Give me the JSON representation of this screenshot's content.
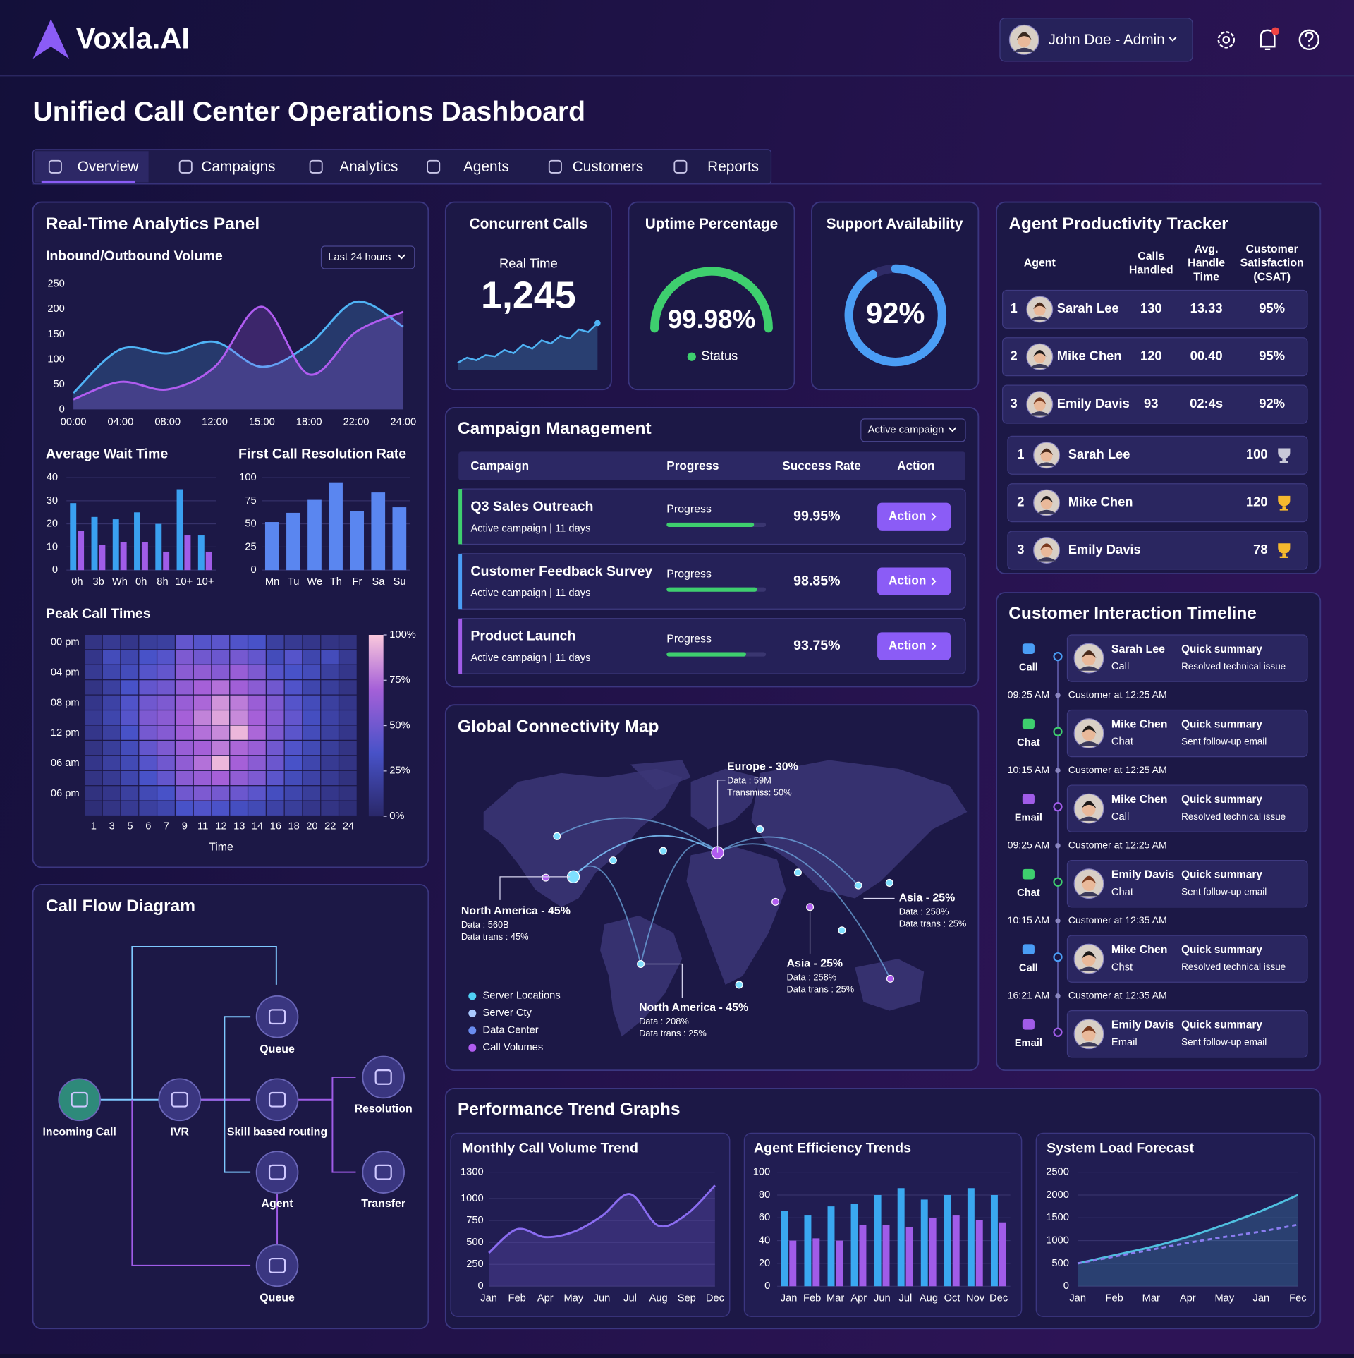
{
  "header": {
    "logo": "Voxla.AI",
    "user": "John Doe - Admin"
  },
  "title": "Unified Call Center Operations Dashboard",
  "tabs": [
    "Overview",
    "Campaigns",
    "Analytics",
    "Agents",
    "Customers",
    "Reports"
  ],
  "realtime": {
    "title": "Real-Time Analytics Panel",
    "volume": {
      "type": "area",
      "title": "Inbound/Outbound Volume",
      "filter": "Last 24 hours",
      "categories": [
        "00:00",
        "04:00",
        "08:00",
        "12:00",
        "15:00",
        "18:00",
        "22:00",
        "24:00"
      ],
      "ylim": [
        0,
        250
      ],
      "yticks": [
        0,
        50,
        100,
        150,
        200,
        250
      ],
      "grid": false,
      "series": [
        {
          "color": "#4fb3f5",
          "values": [
            33,
            120,
            112,
            135,
            85,
            130,
            215,
            165
          ]
        },
        {
          "color": "#b05cf0",
          "values": [
            20,
            55,
            40,
            85,
            205,
            70,
            155,
            195
          ]
        }
      ]
    },
    "wait": {
      "type": "bar",
      "title": "Average Wait Time",
      "categories": [
        "0h",
        "3b",
        "Wh",
        "0h",
        "8h",
        "10+",
        "10+"
      ],
      "ylim": [
        0,
        40
      ],
      "yticks": [
        0,
        10,
        20,
        30,
        40
      ],
      "grid": true,
      "series": [
        {
          "color": "#3aa0f0",
          "values": [
            29,
            23,
            22,
            25,
            20,
            35,
            15
          ]
        },
        {
          "color": "#a05ce8",
          "values": [
            17,
            11,
            12,
            12,
            8,
            15,
            8
          ]
        }
      ]
    },
    "fcr": {
      "type": "bar",
      "title": "First Call Resolution Rate",
      "categories": [
        "Mn",
        "Tu",
        "We",
        "Th",
        "Fr",
        "Sa",
        "Su"
      ],
      "ylim": [
        0,
        100
      ],
      "yticks": [
        0,
        25,
        50,
        75,
        100
      ],
      "grid": true,
      "color": "#5a86f0",
      "values": [
        52,
        62,
        76,
        95,
        64,
        84,
        68
      ]
    },
    "peak": {
      "type": "heatmap",
      "title": "Peak Call Times",
      "x_categories": [
        "1",
        "3",
        "5",
        "6",
        "7",
        "9",
        "11",
        "12",
        "13",
        "14",
        "16",
        "18",
        "20",
        "22",
        "24"
      ],
      "y_categories": [
        "00 pm",
        null,
        "04 pm",
        null,
        "08 pm",
        null,
        "12 pm",
        null,
        "06 am",
        null,
        "06 pm",
        null
      ],
      "xlabel": "Time",
      "clim": [
        0,
        100
      ],
      "cticks": [
        {
          "value": 100,
          "label": "100%"
        },
        {
          "value": 75,
          "label": "75%"
        },
        {
          "value": 50,
          "label": "50%"
        },
        {
          "value": 25,
          "label": "25%"
        },
        {
          "value": 0,
          "label": "0%"
        }
      ],
      "values": [
        [
          10,
          15,
          12,
          18,
          20,
          45,
          40,
          42,
          38,
          35,
          20,
          15,
          12,
          10,
          8
        ],
        [
          12,
          30,
          25,
          35,
          40,
          55,
          50,
          48,
          52,
          45,
          30,
          40,
          25,
          30,
          15
        ],
        [
          15,
          25,
          30,
          40,
          45,
          60,
          62,
          58,
          65,
          55,
          40,
          35,
          30,
          20,
          12
        ],
        [
          10,
          20,
          35,
          45,
          50,
          62,
          70,
          75,
          68,
          60,
          50,
          38,
          25,
          18,
          10
        ],
        [
          12,
          22,
          38,
          50,
          55,
          65,
          72,
          85,
          78,
          66,
          55,
          40,
          30,
          20,
          12
        ],
        [
          15,
          25,
          40,
          55,
          60,
          70,
          80,
          90,
          82,
          70,
          58,
          45,
          32,
          22,
          14
        ],
        [
          12,
          20,
          35,
          52,
          58,
          68,
          75,
          82,
          95,
          72,
          55,
          42,
          30,
          20,
          12
        ],
        [
          10,
          18,
          30,
          45,
          55,
          65,
          70,
          78,
          72,
          65,
          50,
          38,
          28,
          18,
          10
        ],
        [
          12,
          20,
          28,
          40,
          50,
          62,
          75,
          95,
          70,
          60,
          48,
          35,
          25,
          15,
          10
        ],
        [
          10,
          15,
          25,
          35,
          45,
          60,
          65,
          70,
          62,
          55,
          42,
          30,
          22,
          15,
          8
        ],
        [
          8,
          12,
          20,
          28,
          35,
          50,
          55,
          52,
          48,
          42,
          32,
          25,
          18,
          12,
          8
        ],
        [
          5,
          10,
          15,
          20,
          25,
          35,
          38,
          36,
          32,
          28,
          22,
          18,
          12,
          10,
          5
        ]
      ]
    }
  },
  "kpis": [
    {
      "type": "sparkline",
      "title": "Concurrent Calls",
      "subtitle": "Real Time",
      "value": "1,245",
      "color": "#4fb3f5",
      "values": [
        20,
        28,
        24,
        32,
        30,
        40,
        35,
        48,
        42,
        55,
        50,
        62,
        58,
        72,
        68,
        82
      ]
    },
    {
      "type": "gauge",
      "title": "Uptime Percentage",
      "value": 99.98,
      "value_label": "99.98%",
      "status": "Status",
      "color": "#3ecf6e"
    },
    {
      "type": "ring",
      "title": "Support Availability",
      "value": 92,
      "value_label": "92%",
      "color": "#4a9df5"
    }
  ],
  "productivity": {
    "title": "Agent Productivity Tracker",
    "columns": [
      [
        "Agent"
      ],
      [
        "Calls",
        "Handled"
      ],
      [
        "Avg.",
        "Handle",
        "Time"
      ],
      [
        "Customer",
        "Satisfaction",
        "(CSAT)"
      ]
    ],
    "rows": [
      [
        "1",
        "Sarah Lee",
        "130",
        "13.33",
        "95%"
      ],
      [
        "2",
        "Mike Chen",
        "120",
        "00.40",
        "95%"
      ],
      [
        "3",
        "Emily Davis",
        "93",
        "02:4s",
        "92%"
      ]
    ],
    "leaders": [
      [
        "1",
        "Sarah Lee",
        "100"
      ],
      [
        "2",
        "Mike Chen",
        "120"
      ],
      [
        "3",
        "Emily Davis",
        "78"
      ]
    ]
  },
  "campaigns": {
    "title": "Campaign Management",
    "filter": "Active campaign",
    "columns": [
      "Campaign",
      "Progress",
      "Success Rate",
      "Action"
    ],
    "rows": [
      {
        "name": "Q3 Sales Outreach",
        "status": "Active campaign | 11 days",
        "progress_label": "Progress",
        "progress": 88,
        "success": "99.95%",
        "action": "Action",
        "color": "#3ecf6e"
      },
      {
        "name": "Customer Feedback Survey",
        "status": "Active campaign | 11 days",
        "progress_label": "Progress",
        "progress": 91,
        "success": "98.85%",
        "action": "Action",
        "color": "#4a9df5"
      },
      {
        "name": "Product Launch",
        "status": "Active campaign | 11 days",
        "progress_label": "Progress",
        "progress": 80,
        "success": "93.75%",
        "action": "Action",
        "color": "#a05ce8"
      }
    ]
  },
  "map": {
    "title": "Global Connectivity Map",
    "annotations": [
      {
        "title": "Europe - 30%",
        "lines": [
          "Data : 59M",
          "Transmiss: 50%"
        ]
      },
      {
        "title": "North America - 45%",
        "lines": [
          "Data : 560B",
          "Data trans : 45%"
        ]
      },
      {
        "title": "Asia - 25%",
        "lines": [
          "Data : 258%",
          "Data trans : 25%"
        ]
      },
      {
        "title": "Asia - 25%",
        "lines": [
          "Data : 258%",
          "Data trans : 25%"
        ]
      },
      {
        "title": "North America - 45%",
        "lines": [
          "Data : 208%",
          "Data trans : 25%"
        ]
      }
    ],
    "legend": [
      {
        "name": "Server Locations",
        "color": "#4fd0f5"
      },
      {
        "name": "Server Cty",
        "color": "#a9c8ff"
      },
      {
        "name": "Data Center",
        "color": "#6a8cf0"
      },
      {
        "name": "Call Volumes",
        "color": "#b05cf0"
      }
    ]
  },
  "timeline": {
    "title": "Customer Interaction Timeline",
    "items": [
      {
        "channel": "Call",
        "time": "09:25 AM",
        "name": "Sarah Lee",
        "type": "Call",
        "summary_title": "Quick summary",
        "summary": "Resolved technical issue",
        "note": "Customer at 12:25 AM"
      },
      {
        "channel": "Chat",
        "time": "10:15 AM",
        "name": "Mike Chen",
        "type": "Chat",
        "summary_title": "Quick summary",
        "summary": "Sent follow-up email",
        "note": "Customer at 12:25 AM"
      },
      {
        "channel": "Email",
        "time": "09:25 AM",
        "name": "Mike Chen",
        "type": "Call",
        "summary_title": "Quick summary",
        "summary": "Resolved technical issue",
        "note": "Customer at 12:25 AM"
      },
      {
        "channel": "Chat",
        "time": "10:15 AM",
        "name": "Emily Davis",
        "type": "Chat",
        "summary_title": "Quick summary",
        "summary": "Sent follow-up email",
        "note": "Customer at 12:35 AM"
      },
      {
        "channel": "Call",
        "time": "16:21 AM",
        "name": "Mike Chen",
        "type": "Chst",
        "summary_title": "Quick summary",
        "summary": "Resolved technical issue",
        "note": "Customer at 12:35 AM"
      },
      {
        "channel": "Email",
        "name": "Emily Davis",
        "type": "Email",
        "summary_title": "Quick summary",
        "summary": "Sent follow-up email"
      }
    ]
  },
  "callflow": {
    "title": "Call Flow Diagram",
    "nodes": [
      "Incoming Call",
      "IVR",
      "Queue",
      "Skill based routing",
      "Agent",
      "Queue",
      "Resolution",
      "Transfer"
    ]
  },
  "performance": {
    "title": "Performance Trend Graphs",
    "charts": [
      {
        "type": "area",
        "title": "Monthly Call Volume Trend",
        "categories": [
          "Jan",
          "Feb",
          "Apr",
          "May",
          "Jun",
          "Jul",
          "Aug",
          "Sep",
          "Dec"
        ],
        "ylim": [
          0,
          1300
        ],
        "yticks": [
          0,
          250,
          500,
          750,
          1000,
          1300
        ],
        "grid": true,
        "color": "#8a6cf0",
        "values": [
          380,
          650,
          560,
          620,
          800,
          1050,
          690,
          820,
          1150
        ]
      },
      {
        "type": "bar",
        "title": "Agent Efficiency Trends",
        "categories": [
          "Jan",
          "Feb",
          "Mar",
          "Apr",
          "Jun",
          "Jul",
          "Aug",
          "Oct",
          "Nov",
          "Dec"
        ],
        "ylim": [
          0,
          100
        ],
        "yticks": [
          0,
          20,
          40,
          60,
          80,
          100
        ],
        "grid": true,
        "series": [
          {
            "color": "#3aa8f0",
            "values": [
              66,
              62,
              70,
              72,
              80,
              86,
              76,
              80,
              86,
              80
            ]
          },
          {
            "color": "#a05ce8",
            "values": [
              40,
              42,
              40,
              54,
              54,
              52,
              60,
              62,
              58,
              56
            ]
          }
        ]
      },
      {
        "type": "area",
        "title": "System Load Forecast",
        "categories": [
          "Jan",
          "Feb",
          "Mar",
          "Apr",
          "May",
          "Jan",
          "Fec"
        ],
        "ylim": [
          0,
          2500
        ],
        "yticks": [
          0,
          500,
          1000,
          1500,
          2000,
          2500
        ],
        "grid": true,
        "series": [
          {
            "color": "#4fc0e0",
            "values": [
              500,
              680,
              860,
              1080,
              1350,
              1650,
              2000
            ]
          },
          {
            "color": "#8a7cf0",
            "dashed": true,
            "values": [
              500,
              650,
              800,
              950,
              1080,
              1200,
              1350
            ]
          }
        ]
      }
    ]
  }
}
